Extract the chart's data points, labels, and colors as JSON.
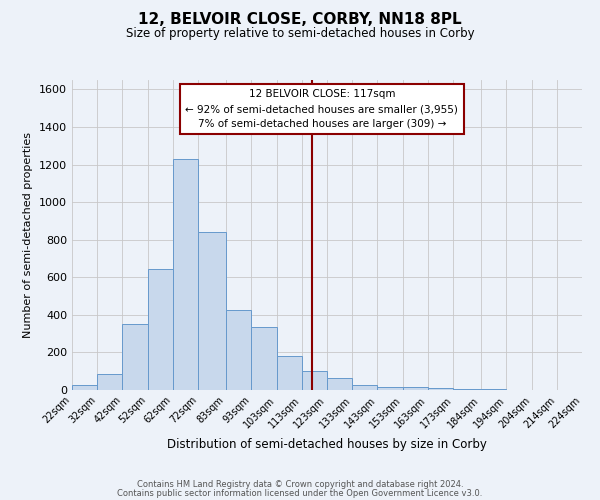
{
  "title": "12, BELVOIR CLOSE, CORBY, NN18 8PL",
  "subtitle": "Size of property relative to semi-detached houses in Corby",
  "xlabel": "Distribution of semi-detached houses by size in Corby",
  "ylabel": "Number of semi-detached properties",
  "bar_color": "#c8d8ec",
  "bar_edge_color": "#6699cc",
  "bin_edges": [
    22,
    32,
    42,
    52,
    62,
    72,
    83,
    93,
    103,
    113,
    123,
    133,
    143,
    153,
    163,
    173,
    184,
    194,
    204,
    214,
    224
  ],
  "bin_labels": [
    "22sqm",
    "32sqm",
    "42sqm",
    "52sqm",
    "62sqm",
    "72sqm",
    "83sqm",
    "93sqm",
    "103sqm",
    "113sqm",
    "123sqm",
    "133sqm",
    "143sqm",
    "153sqm",
    "163sqm",
    "173sqm",
    "184sqm",
    "194sqm",
    "204sqm",
    "214sqm",
    "224sqm"
  ],
  "counts": [
    25,
    85,
    350,
    645,
    1230,
    840,
    425,
    335,
    180,
    100,
    65,
    25,
    15,
    15,
    10,
    5,
    5,
    0,
    0,
    0
  ],
  "property_size": 117,
  "property_label": "12 BELVOIR CLOSE: 117sqm",
  "pct_smaller": 92,
  "pct_larger": 7,
  "n_smaller": 3955,
  "n_larger": 309,
  "vline_color": "#8b0000",
  "annotation_box_color": "#8b0000",
  "ylim": [
    0,
    1650
  ],
  "yticks": [
    0,
    200,
    400,
    600,
    800,
    1000,
    1200,
    1400,
    1600
  ],
  "footer_line1": "Contains HM Land Registry data © Crown copyright and database right 2024.",
  "footer_line2": "Contains public sector information licensed under the Open Government Licence v3.0.",
  "background_color": "#edf2f9",
  "plot_background_color": "#edf2f9"
}
